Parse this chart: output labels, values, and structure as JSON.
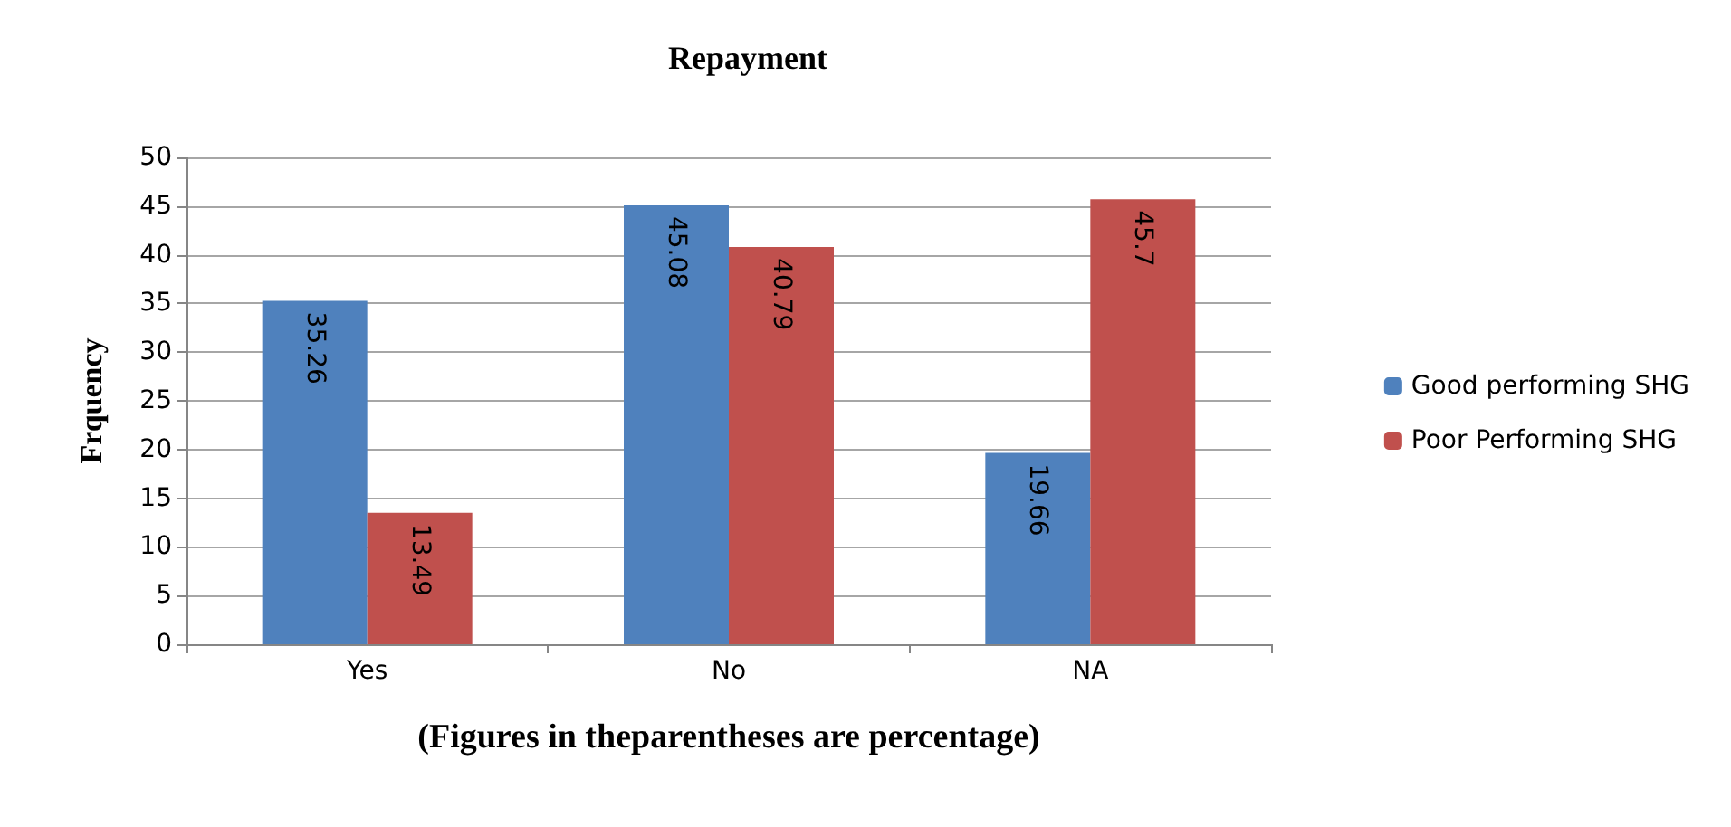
{
  "chart_data": {
    "type": "bar",
    "title": "Repayment",
    "ylabel": "Frquency",
    "xlabel": "(Figures in theparentheses are percentage)",
    "categories": [
      "Yes",
      "No",
      "NA"
    ],
    "series": [
      {
        "name": "Good performing SHG",
        "color": "#4f81bd",
        "values": [
          35.26,
          45.08,
          19.66
        ]
      },
      {
        "name": "Poor Performing SHG",
        "color": "#c0504d",
        "values": [
          13.49,
          40.79,
          45.7
        ]
      }
    ],
    "ylim": [
      0,
      50
    ],
    "yticks": [
      0,
      5,
      10,
      15,
      20,
      25,
      30,
      35,
      40,
      45,
      50
    ],
    "grid": "y",
    "legend": "right",
    "data_labels": true
  }
}
